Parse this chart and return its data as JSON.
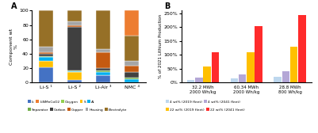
{
  "panel_A": {
    "categories": [
      "Li-S ¹",
      "Li-S ²",
      "Li-Air ³",
      "NMC ⁴"
    ],
    "comp_order": [
      "Li",
      "S",
      "Al",
      "Separator",
      "Carbon",
      "Copper",
      "Housing",
      "Electrolyte",
      "LiNMnCoO2",
      "Oxygen"
    ],
    "components": {
      "Li": [
        21,
        3,
        10,
        0
      ],
      "LiNMnCoO2": [
        0,
        0,
        0,
        35
      ],
      "Oxygen": [
        0,
        0,
        0,
        0
      ],
      "S": [
        9,
        12,
        0,
        0
      ],
      "Al": [
        5,
        1,
        5,
        5
      ],
      "Separator": [
        2,
        1,
        2,
        2
      ],
      "Carbon": [
        3,
        60,
        3,
        8
      ],
      "Copper": [
        2,
        2,
        22,
        8
      ],
      "Housing": [
        8,
        6,
        5,
        7
      ],
      "Electrolyte": [
        50,
        15,
        53,
        35
      ]
    },
    "colors": {
      "Li": "#4472C4",
      "LiNMnCoO2": "#ED7D31",
      "Oxygen": "#92D050",
      "S": "#FFC000",
      "Al": "#00B0F0",
      "Separator": "#70AD47",
      "Carbon": "#404040",
      "Copper": "#C55A11",
      "Housing": "#A5A5A5",
      "Electrolyte": "#967027"
    },
    "ylabel": "Component wt\n%",
    "ylim": [
      0,
      100
    ],
    "yticks": [
      0,
      20,
      40,
      60,
      80,
      100
    ],
    "title": "A"
  },
  "panel_B": {
    "groups": [
      "32.2 MWh\n2000 Wh/kg",
      "60.34 MWh\n2000 Wh/kg",
      "28.8 MWh\n800 Wh/kg"
    ],
    "series": {
      "4 wt% (2019 fleet)": [
        8,
        15,
        20
      ],
      "4 wt% (2041 fleet)": [
        18,
        30,
        42
      ],
      "22 wt% (2019 fleet)": [
        58,
        108,
        128
      ],
      "22 wt% (2041 fleet)": [
        108,
        205,
        243
      ]
    },
    "colors": {
      "4 wt% (2019 fleet)": "#BDD7EE",
      "4 wt% (2041 fleet)": "#B4A7D6",
      "22 wt% (2019 fleet)": "#FFC000",
      "22 wt% (2041 fleet)": "#FF2B2B"
    },
    "ylabel": "% of 2021 Lithium Production",
    "ylim": [
      0,
      260
    ],
    "yticks": [
      0,
      50,
      100,
      150,
      200,
      250
    ],
    "yticklabels": [
      "0%",
      "50%",
      "100%",
      "150%",
      "200%",
      "250%"
    ],
    "title": "B"
  },
  "legend_A_row1": [
    "Li",
    "LiNMnCoO2",
    "Oxygen",
    "S",
    "Al"
  ],
  "legend_A_row2": [
    "Separator",
    "Carbon",
    "Copper",
    "Housing",
    "Electrolyte"
  ],
  "legend_B_row1": [
    "4 wt% (2019 fleet)",
    "4 wt% (2041 fleet)"
  ],
  "legend_B_row2": [
    "22 wt% (2019 fleet)",
    "22 wt% (2041 fleet)"
  ]
}
